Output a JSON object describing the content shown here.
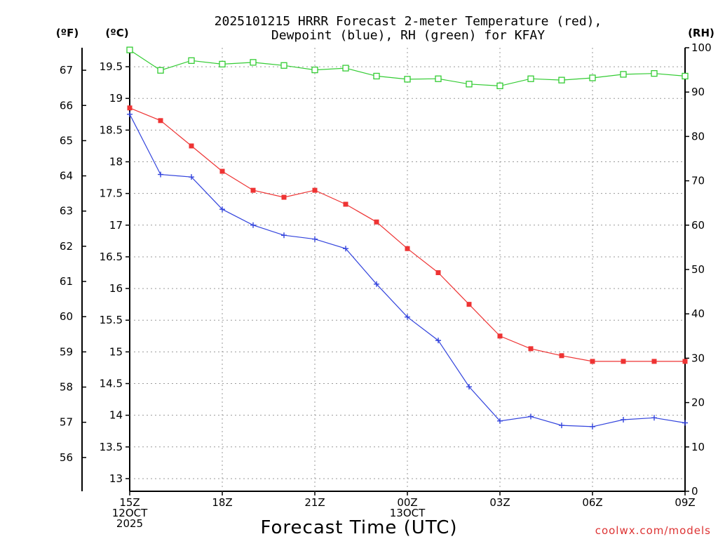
{
  "chart_data": {
    "type": "line",
    "title_lines": [
      "2025101215 HRRR Forecast 2-meter Temperature (red),",
      "Dewpoint (blue), RH (green) for KFAY"
    ],
    "xlabel": "Forecast Time (UTC)",
    "units": {
      "left_outer": "(ºF)",
      "left_inner": "(ºC)",
      "right": "(RH)"
    },
    "credit": "coolwx.com/models",
    "x_tick_labels": [
      {
        "hour": 0,
        "lines": [
          "15Z",
          "12OCT",
          "2025"
        ]
      },
      {
        "hour": 3,
        "lines": [
          "18Z"
        ]
      },
      {
        "hour": 6,
        "lines": [
          "21Z"
        ]
      },
      {
        "hour": 9,
        "lines": [
          "00Z",
          "13OCT"
        ]
      },
      {
        "hour": 12,
        "lines": [
          "03Z"
        ]
      },
      {
        "hour": 15,
        "lines": [
          "06Z"
        ]
      },
      {
        "hour": 18,
        "lines": [
          "09Z"
        ]
      }
    ],
    "x_range": [
      0,
      18
    ],
    "ylim_c": [
      12.8,
      19.8
    ],
    "ylim_rh": [
      0,
      100
    ],
    "y_ticks_c": [
      "13",
      "13.5",
      "14",
      "14.5",
      "15",
      "15.5",
      "16",
      "16.5",
      "17",
      "17.5",
      "18",
      "18.5",
      "19",
      "19.5"
    ],
    "y_ticks_f": [
      "56",
      "57",
      "58",
      "59",
      "60",
      "61",
      "62",
      "63",
      "64",
      "65",
      "66",
      "67"
    ],
    "y_ticks_rh": [
      "0",
      "10",
      "20",
      "30",
      "40",
      "50",
      "60",
      "70",
      "80",
      "90",
      "100"
    ],
    "series": [
      {
        "name": "2-meter Temperature",
        "axis": "celsius",
        "color": "#ee3333",
        "marker": "filled-square",
        "hours": [
          0,
          1,
          2,
          3,
          4,
          5,
          6,
          7,
          8,
          9,
          10,
          11,
          12,
          13,
          14,
          15,
          16,
          17,
          18
        ],
        "values": [
          18.85,
          18.65,
          18.25,
          17.85,
          17.55,
          17.44,
          17.55,
          17.33,
          17.05,
          16.63,
          16.25,
          15.75,
          15.25,
          15.05,
          14.94,
          14.85,
          14.85,
          14.85,
          14.85
        ]
      },
      {
        "name": "Dewpoint",
        "axis": "celsius",
        "color": "#3344dd",
        "marker": "plus",
        "hours": [
          0,
          1,
          2,
          3,
          4,
          5,
          6,
          7,
          8,
          9,
          10,
          11,
          12,
          13,
          14,
          15,
          16,
          17,
          18
        ],
        "values": [
          18.75,
          17.8,
          17.76,
          17.25,
          17.0,
          16.84,
          16.78,
          16.63,
          16.07,
          15.55,
          15.18,
          14.45,
          13.91,
          13.98,
          13.84,
          13.82,
          13.93,
          13.96,
          13.88
        ]
      },
      {
        "name": "RH",
        "axis": "rh",
        "color": "#33cc33",
        "marker": "open-square",
        "hours": [
          0,
          1,
          2,
          3,
          4,
          5,
          6,
          7,
          8,
          9,
          10,
          11,
          12,
          13,
          14,
          15,
          16,
          17,
          18
        ],
        "values": [
          99.5,
          94.9,
          97.1,
          96.3,
          96.7,
          96.0,
          95.0,
          95.4,
          93.6,
          92.9,
          93.0,
          91.8,
          91.4,
          93.0,
          92.7,
          93.2,
          94.0,
          94.2,
          93.6
        ]
      }
    ]
  }
}
